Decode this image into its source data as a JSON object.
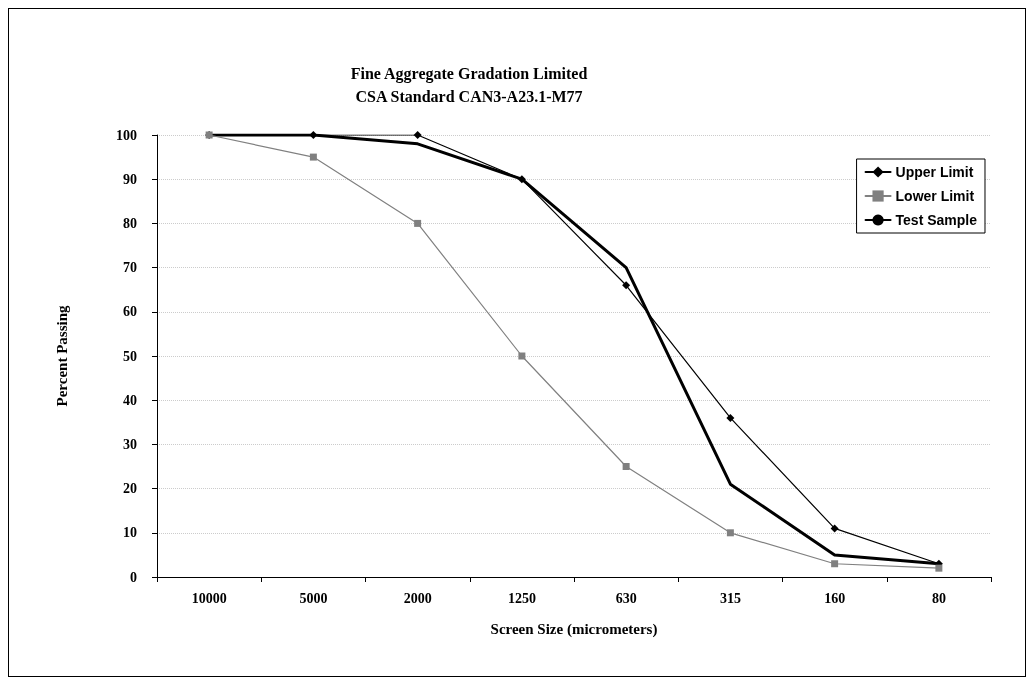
{
  "chart_data": {
    "type": "line",
    "title": "Fine Aggregate Gradation Limited\nCSA Standard CAN3-A23.1-M77",
    "xlabel": "Screen Size (micrometers)",
    "ylabel": "Percent Passing",
    "categories": [
      "10000",
      "5000",
      "2000",
      "1250",
      "630",
      "315",
      "160",
      "80"
    ],
    "ylim": [
      0,
      100
    ],
    "yticks": [
      0,
      10,
      20,
      30,
      40,
      50,
      60,
      70,
      80,
      90,
      100
    ],
    "grid": "y",
    "legend": "top right",
    "line_style": "solid",
    "series": [
      {
        "name": "Upper Limit",
        "color": "#000000",
        "marker": "diamond",
        "values": [
          100,
          100,
          100,
          90,
          66,
          36,
          11,
          3
        ]
      },
      {
        "name": "Lower Limit",
        "color": "#808080",
        "marker": "square",
        "values": [
          100,
          95,
          80,
          50,
          25,
          10,
          3,
          2
        ]
      },
      {
        "name": "Test Sample",
        "color": "#000000",
        "marker": "none",
        "values": [
          100,
          100,
          98,
          90,
          70,
          21,
          5,
          3
        ]
      }
    ]
  }
}
